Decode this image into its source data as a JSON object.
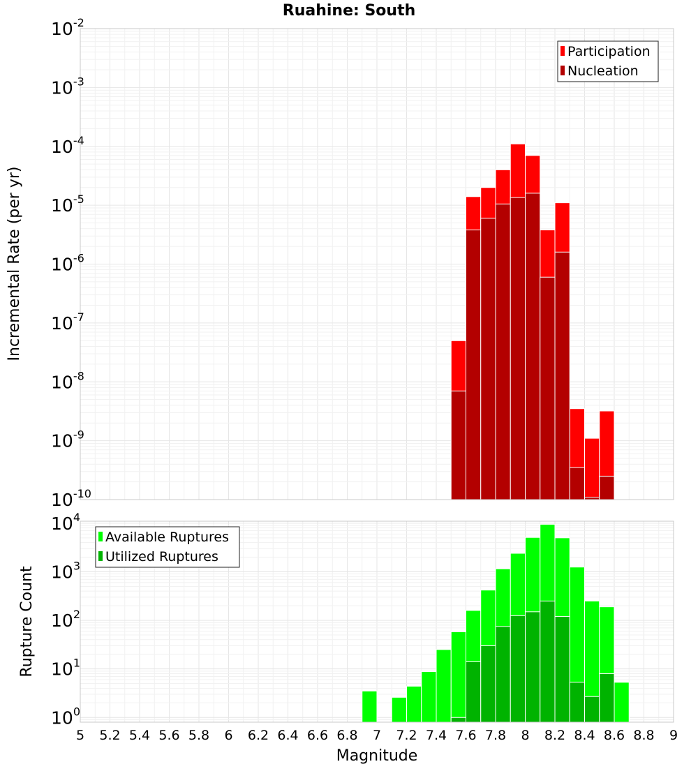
{
  "chart_data": [
    {
      "type": "bar",
      "title": "Ruahine: South",
      "ylabel": "Incremental Rate (per yr)",
      "xlabel": "",
      "yscale": "log",
      "ylim": [
        1e-10,
        0.01
      ],
      "xlim": [
        5,
        9
      ],
      "y_ticks": [
        {
          "base": "10",
          "exp": "-10",
          "value": 1e-10
        },
        {
          "base": "10",
          "exp": "-9",
          "value": 1e-09
        },
        {
          "base": "10",
          "exp": "-8",
          "value": 1e-08
        },
        {
          "base": "10",
          "exp": "-7",
          "value": 1e-07
        },
        {
          "base": "10",
          "exp": "-6",
          "value": 1e-06
        },
        {
          "base": "10",
          "exp": "-5",
          "value": 1e-05
        },
        {
          "base": "10",
          "exp": "-4",
          "value": 0.0001
        },
        {
          "base": "10",
          "exp": "-3",
          "value": 0.001
        },
        {
          "base": "10",
          "exp": "-2",
          "value": 0.01
        }
      ],
      "legend_position": "top-right",
      "bin_width": 0.1,
      "series": [
        {
          "name": "Participation",
          "color": "#ff0000",
          "x": [
            7.55,
            7.65,
            7.75,
            7.85,
            7.95,
            8.05,
            8.15,
            8.25,
            8.35,
            8.45,
            8.55
          ],
          "values": [
            5e-08,
            1.4e-05,
            2e-05,
            4e-05,
            0.00011,
            7e-05,
            3.8e-06,
            1.1e-05,
            3.5e-09,
            1.1e-09,
            3.2e-09
          ]
        },
        {
          "name": "Nucleation",
          "color": "#b30000",
          "x": [
            7.55,
            7.65,
            7.75,
            7.85,
            7.95,
            8.05,
            8.15,
            8.25,
            8.35,
            8.45,
            8.55
          ],
          "values": [
            7e-09,
            3.8e-06,
            6e-06,
            1.05e-05,
            1.35e-05,
            1.6e-05,
            6e-07,
            1.6e-06,
            3.5e-10,
            1.1e-10,
            2.5e-10
          ]
        }
      ]
    },
    {
      "type": "bar",
      "title": "",
      "ylabel": "Rupture Count",
      "xlabel": "Magnitude",
      "yscale": "log",
      "ylim": [
        0.8,
        11000
      ],
      "xlim": [
        5,
        9
      ],
      "x_ticks": [
        "5",
        "5.2",
        "5.4",
        "5.6",
        "5.8",
        "6",
        "6.2",
        "6.4",
        "6.6",
        "6.8",
        "7",
        "7.2",
        "7.4",
        "7.6",
        "7.8",
        "8",
        "8.2",
        "8.4",
        "8.6",
        "8.8",
        "9"
      ],
      "y_ticks": [
        {
          "base": "10",
          "exp": "0",
          "value": 1
        },
        {
          "base": "10",
          "exp": "1",
          "value": 10
        },
        {
          "base": "10",
          "exp": "2",
          "value": 100
        },
        {
          "base": "10",
          "exp": "3",
          "value": 1000
        },
        {
          "base": "10",
          "exp": "4",
          "value": 10000
        }
      ],
      "legend_position": "top-left",
      "bin_width": 0.1,
      "series": [
        {
          "name": "Available Ruptures",
          "color": "#00ff00",
          "x": [
            6.95,
            7.15,
            7.25,
            7.35,
            7.45,
            7.55,
            7.65,
            7.75,
            7.85,
            7.95,
            8.05,
            8.15,
            8.25,
            8.35,
            8.45,
            8.55,
            8.65
          ],
          "values": [
            3.5,
            2.6,
            4.4,
            8.8,
            25,
            58,
            160,
            420,
            1150,
            2400,
            5100,
            9500,
            5000,
            1250,
            250,
            190,
            5.3
          ]
        },
        {
          "name": "Utilized Ruptures",
          "color": "#00b300",
          "x": [
            7.55,
            7.65,
            7.75,
            7.85,
            7.95,
            8.05,
            8.15,
            8.25,
            8.35,
            8.45,
            8.55
          ],
          "values": [
            1,
            14,
            30,
            75,
            125,
            150,
            250,
            120,
            5.3,
            2.7,
            8
          ]
        }
      ]
    }
  ]
}
